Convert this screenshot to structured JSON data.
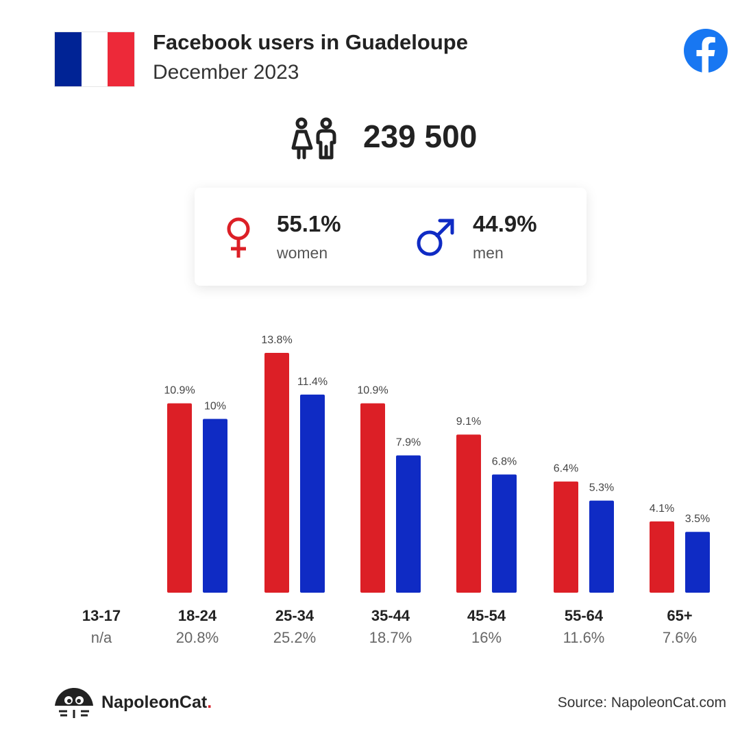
{
  "header": {
    "title": "Facebook users in Guadeloupe",
    "subtitle": "December 2023"
  },
  "flag": {
    "colors": [
      "#002395",
      "#ffffff",
      "#ed2939"
    ]
  },
  "icons": {
    "facebook": "facebook-logo-icon",
    "people": "people-icon",
    "female": "female-symbol-icon",
    "male": "male-symbol-icon"
  },
  "total_users": "239 500",
  "gender": {
    "women": {
      "value": "55.1%",
      "label": "women"
    },
    "men": {
      "value": "44.9%",
      "label": "men"
    }
  },
  "colors": {
    "women": "#dc1f26",
    "men": "#0f2bc4",
    "facebook": "#1877f2"
  },
  "chart_data": {
    "type": "bar",
    "categories": [
      "13-17",
      "18-24",
      "25-34",
      "35-44",
      "45-54",
      "55-64",
      "65+"
    ],
    "group_totals": [
      "n/a",
      "20.8%",
      "25.2%",
      "18.7%",
      "16%",
      "11.6%",
      "7.6%"
    ],
    "series": [
      {
        "key": "women",
        "values": [
          null,
          10.9,
          13.8,
          10.9,
          9.1,
          6.4,
          4.1
        ],
        "labels": [
          "",
          "10.9%",
          "13.8%",
          "10.9%",
          "9.1%",
          "6.4%",
          "4.1%"
        ]
      },
      {
        "key": "men",
        "values": [
          null,
          10,
          11.4,
          7.9,
          6.8,
          5.3,
          3.5
        ],
        "labels": [
          "",
          "10%",
          "11.4%",
          "7.9%",
          "6.8%",
          "5.3%",
          "3.5%"
        ]
      }
    ],
    "ylim": [
      0,
      15
    ],
    "grid": false
  },
  "footer": {
    "brand": "NapoleonCat",
    "brand_dot": ".",
    "source": "Source: NapoleonCat.com"
  }
}
